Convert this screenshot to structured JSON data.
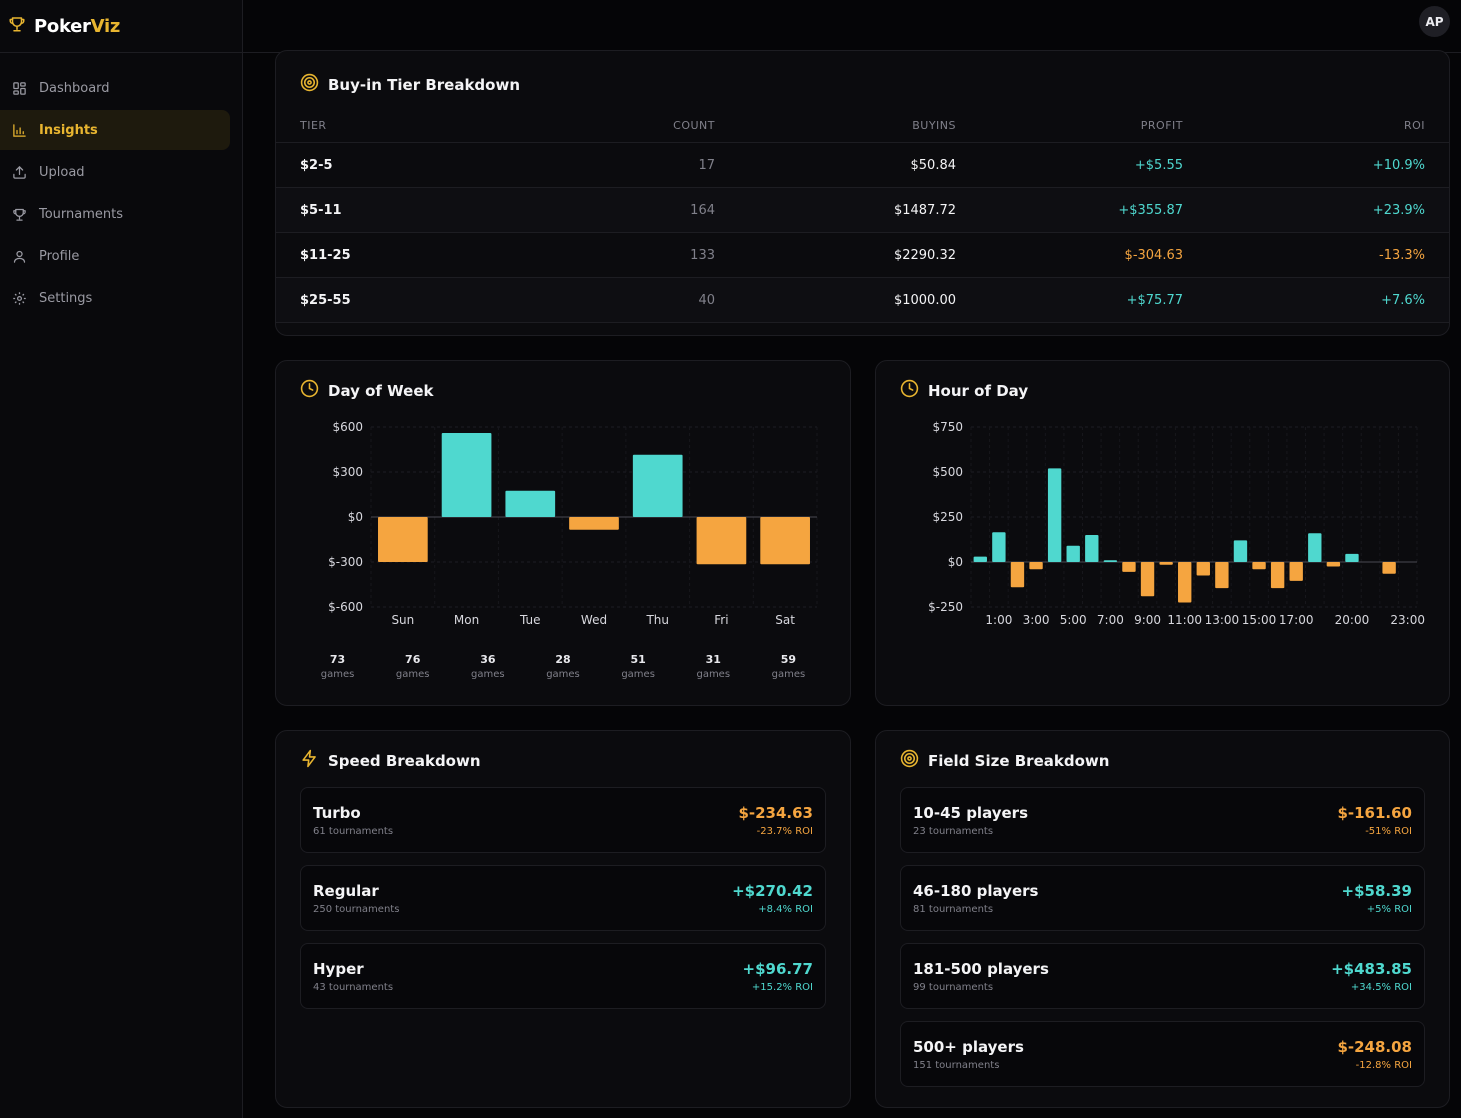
{
  "brand": {
    "name_part1": "Poker",
    "name_part2": "Viz"
  },
  "user": {
    "initials": "AP"
  },
  "sidebar": {
    "items": [
      {
        "label": "Dashboard",
        "icon": "grid-icon"
      },
      {
        "label": "Insights",
        "icon": "bar-chart-icon",
        "active": true
      },
      {
        "label": "Upload",
        "icon": "upload-icon"
      },
      {
        "label": "Tournaments",
        "icon": "trophy-icon"
      },
      {
        "label": "Profile",
        "icon": "user-icon"
      },
      {
        "label": "Settings",
        "icon": "gear-icon"
      }
    ]
  },
  "colors": {
    "accent": "#e8b530",
    "positive": "#4fd8cf",
    "negative": "#f5a540"
  },
  "buyin": {
    "title": "Buy-in Tier Breakdown",
    "headers": {
      "tier": "TIER",
      "count": "COUNT",
      "buyins": "BUYINS",
      "profit": "PROFIT",
      "roi": "ROI"
    },
    "rows": [
      {
        "tier": "$2-5",
        "count": "17",
        "buyins": "$50.84",
        "profit": "+$5.55",
        "roi": "+10.9%"
      },
      {
        "tier": "$5-11",
        "count": "164",
        "buyins": "$1487.72",
        "profit": "+$355.87",
        "roi": "+23.9%"
      },
      {
        "tier": "$11-25",
        "count": "133",
        "buyins": "$2290.32",
        "profit": "$-304.63",
        "roi": "-13.3%"
      },
      {
        "tier": "$25-55",
        "count": "40",
        "buyins": "$1000.00",
        "profit": "+$75.77",
        "roi": "+7.6%"
      }
    ]
  },
  "day_of_week": {
    "title": "Day of Week",
    "games_label": "games",
    "games": [
      "73",
      "76",
      "36",
      "28",
      "51",
      "31",
      "59"
    ]
  },
  "hour_of_day": {
    "title": "Hour of Day"
  },
  "speed": {
    "title": "Speed Breakdown",
    "items": [
      {
        "name": "Turbo",
        "sub": "61 tournaments",
        "value": "$-234.63",
        "roi": "-23.7% ROI",
        "positive": false
      },
      {
        "name": "Regular",
        "sub": "250 tournaments",
        "value": "+$270.42",
        "roi": "+8.4% ROI",
        "positive": true
      },
      {
        "name": "Hyper",
        "sub": "43 tournaments",
        "value": "+$96.77",
        "roi": "+15.2% ROI",
        "positive": true
      }
    ]
  },
  "field_size": {
    "title": "Field Size Breakdown",
    "items": [
      {
        "name": "10-45 players",
        "sub": "23 tournaments",
        "value": "$-161.60",
        "roi": "-51% ROI",
        "positive": false
      },
      {
        "name": "46-180 players",
        "sub": "81 tournaments",
        "value": "+$58.39",
        "roi": "+5% ROI",
        "positive": true
      },
      {
        "name": "181-500 players",
        "sub": "99 tournaments",
        "value": "+$483.85",
        "roi": "+34.5% ROI",
        "positive": true
      },
      {
        "name": "500+ players",
        "sub": "151 tournaments",
        "value": "$-248.08",
        "roi": "-12.8% ROI",
        "positive": false
      }
    ]
  },
  "chart_data": [
    {
      "type": "bar",
      "title": "Day of Week",
      "categories": [
        "Sun",
        "Mon",
        "Tue",
        "Wed",
        "Thu",
        "Fri",
        "Sat"
      ],
      "values": [
        -300,
        560,
        175,
        -85,
        415,
        -315,
        -315
      ],
      "y_ticks": [
        600,
        300,
        0,
        -300,
        -600
      ],
      "y_tick_labels": [
        "$600",
        "$300",
        "$0",
        "$-300",
        "$-600"
      ],
      "ylim": [
        -600,
        600
      ],
      "grid": true
    },
    {
      "type": "bar",
      "title": "Hour of Day",
      "x": [
        0,
        1,
        2,
        3,
        4,
        5,
        6,
        7,
        8,
        9,
        10,
        11,
        12,
        13,
        14,
        15,
        16,
        17,
        18,
        19,
        20,
        21,
        22,
        23
      ],
      "x_tick_labels": {
        "1": "1:00",
        "3": "3:00",
        "5": "5:00",
        "7": "7:00",
        "9": "9:00",
        "11": "11:00",
        "13": "13:00",
        "15": "15:00",
        "17": "17:00",
        "20": "20:00",
        "23": "23:00"
      },
      "values": [
        30,
        165,
        -140,
        -40,
        520,
        90,
        150,
        10,
        -55,
        -190,
        -15,
        -225,
        -75,
        -145,
        120,
        -40,
        -145,
        -105,
        160,
        -25,
        45,
        0,
        -65,
        0
      ],
      "y_ticks": [
        750,
        500,
        250,
        0,
        -250
      ],
      "y_tick_labels": [
        "$750",
        "$500",
        "$250",
        "$0",
        "$-250"
      ],
      "ylim": [
        -250,
        750
      ],
      "grid": true
    }
  ]
}
